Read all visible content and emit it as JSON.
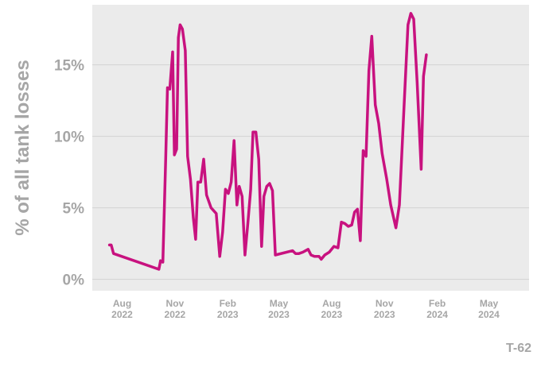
{
  "chart_data": {
    "type": "line",
    "title": "",
    "xlabel": "",
    "ylabel": "% of all tank losses",
    "ylim": [
      -0.8,
      19.2
    ],
    "grid": true,
    "y_ticks": [
      {
        "value": 0,
        "label": "0%"
      },
      {
        "value": 5,
        "label": "5%"
      },
      {
        "value": 10,
        "label": "10%"
      },
      {
        "value": 15,
        "label": "15%"
      }
    ],
    "x_ticks": [
      {
        "date": "2022-08-01",
        "line1": "Aug",
        "line2": "2022"
      },
      {
        "date": "2022-11-01",
        "line1": "Nov",
        "line2": "2022"
      },
      {
        "date": "2023-02-01",
        "line1": "Feb",
        "line2": "2023"
      },
      {
        "date": "2023-05-01",
        "line1": "May",
        "line2": "2023"
      },
      {
        "date": "2023-08-01",
        "line1": "Aug",
        "line2": "2023"
      },
      {
        "date": "2023-11-01",
        "line1": "Nov",
        "line2": "2023"
      },
      {
        "date": "2024-02-01",
        "line1": "Feb",
        "line2": "2024"
      },
      {
        "date": "2024-05-01",
        "line1": "May",
        "line2": "2024"
      }
    ],
    "xlim": [
      "2022-06-10",
      "2024-07-10"
    ],
    "series": [
      {
        "color": "#c8127f",
        "points": [
          [
            "2022-07-10",
            2.4
          ],
          [
            "2022-07-13",
            2.4
          ],
          [
            "2022-07-17",
            1.8
          ],
          [
            "2022-10-04",
            0.7
          ],
          [
            "2022-10-07",
            1.3
          ],
          [
            "2022-10-11",
            1.2
          ],
          [
            "2022-10-16",
            8.5
          ],
          [
            "2022-10-19",
            13.4
          ],
          [
            "2022-10-23",
            13.3
          ],
          [
            "2022-10-28",
            15.9
          ],
          [
            "2022-10-31",
            8.7
          ],
          [
            "2022-11-04",
            9.1
          ],
          [
            "2022-11-07",
            16.9
          ],
          [
            "2022-11-10",
            17.8
          ],
          [
            "2022-11-14",
            17.5
          ],
          [
            "2022-11-19",
            16.0
          ],
          [
            "2022-11-23",
            8.6
          ],
          [
            "2022-11-28",
            7.0
          ],
          [
            "2022-12-03",
            4.3
          ],
          [
            "2022-12-07",
            2.8
          ],
          [
            "2022-12-11",
            6.8
          ],
          [
            "2022-12-16",
            6.8
          ],
          [
            "2022-12-21",
            8.4
          ],
          [
            "2022-12-26",
            5.9
          ],
          [
            "2023-01-03",
            5.0
          ],
          [
            "2023-01-12",
            4.6
          ],
          [
            "2023-01-18",
            1.6
          ],
          [
            "2023-01-23",
            3.3
          ],
          [
            "2023-01-28",
            6.3
          ],
          [
            "2023-02-02",
            6.0
          ],
          [
            "2023-02-07",
            6.8
          ],
          [
            "2023-02-12",
            9.7
          ],
          [
            "2023-02-17",
            5.2
          ],
          [
            "2023-02-21",
            6.5
          ],
          [
            "2023-02-26",
            5.8
          ],
          [
            "2023-03-03",
            1.7
          ],
          [
            "2023-03-08",
            3.9
          ],
          [
            "2023-03-13",
            6.3
          ],
          [
            "2023-03-17",
            10.3
          ],
          [
            "2023-03-22",
            10.3
          ],
          [
            "2023-03-27",
            8.4
          ],
          [
            "2023-04-01",
            2.3
          ],
          [
            "2023-04-05",
            5.8
          ],
          [
            "2023-04-10",
            6.5
          ],
          [
            "2023-04-15",
            6.7
          ],
          [
            "2023-04-20",
            6.2
          ],
          [
            "2023-04-25",
            1.7
          ],
          [
            "2023-05-25",
            2.0
          ],
          [
            "2023-05-30",
            1.8
          ],
          [
            "2023-06-05",
            1.8
          ],
          [
            "2023-06-12",
            1.9
          ],
          [
            "2023-06-21",
            2.1
          ],
          [
            "2023-06-26",
            1.7
          ],
          [
            "2023-07-02",
            1.6
          ],
          [
            "2023-07-10",
            1.6
          ],
          [
            "2023-07-14",
            1.4
          ],
          [
            "2023-07-20",
            1.7
          ],
          [
            "2023-07-28",
            1.9
          ],
          [
            "2023-08-05",
            2.3
          ],
          [
            "2023-08-12",
            2.2
          ],
          [
            "2023-08-18",
            4.0
          ],
          [
            "2023-08-24",
            3.9
          ],
          [
            "2023-08-30",
            3.7
          ],
          [
            "2023-09-05",
            3.8
          ],
          [
            "2023-09-10",
            4.7
          ],
          [
            "2023-09-15",
            4.9
          ],
          [
            "2023-09-20",
            2.7
          ],
          [
            "2023-09-25",
            9.0
          ],
          [
            "2023-09-30",
            8.6
          ],
          [
            "2023-10-05",
            14.6
          ],
          [
            "2023-10-10",
            17.0
          ],
          [
            "2023-10-16",
            12.2
          ],
          [
            "2023-10-22",
            10.9
          ],
          [
            "2023-10-28",
            8.8
          ],
          [
            "2023-11-05",
            7.0
          ],
          [
            "2023-11-12",
            5.2
          ],
          [
            "2023-11-21",
            3.6
          ],
          [
            "2023-11-27",
            5.2
          ],
          [
            "2023-12-05",
            11.9
          ],
          [
            "2023-12-12",
            17.8
          ],
          [
            "2023-12-17",
            18.6
          ],
          [
            "2023-12-22",
            18.2
          ],
          [
            "2023-12-28",
            13.8
          ],
          [
            "2024-01-04",
            7.7
          ],
          [
            "2024-01-08",
            14.2
          ],
          [
            "2024-01-13",
            15.7
          ]
        ]
      }
    ]
  },
  "caption": "T-62"
}
